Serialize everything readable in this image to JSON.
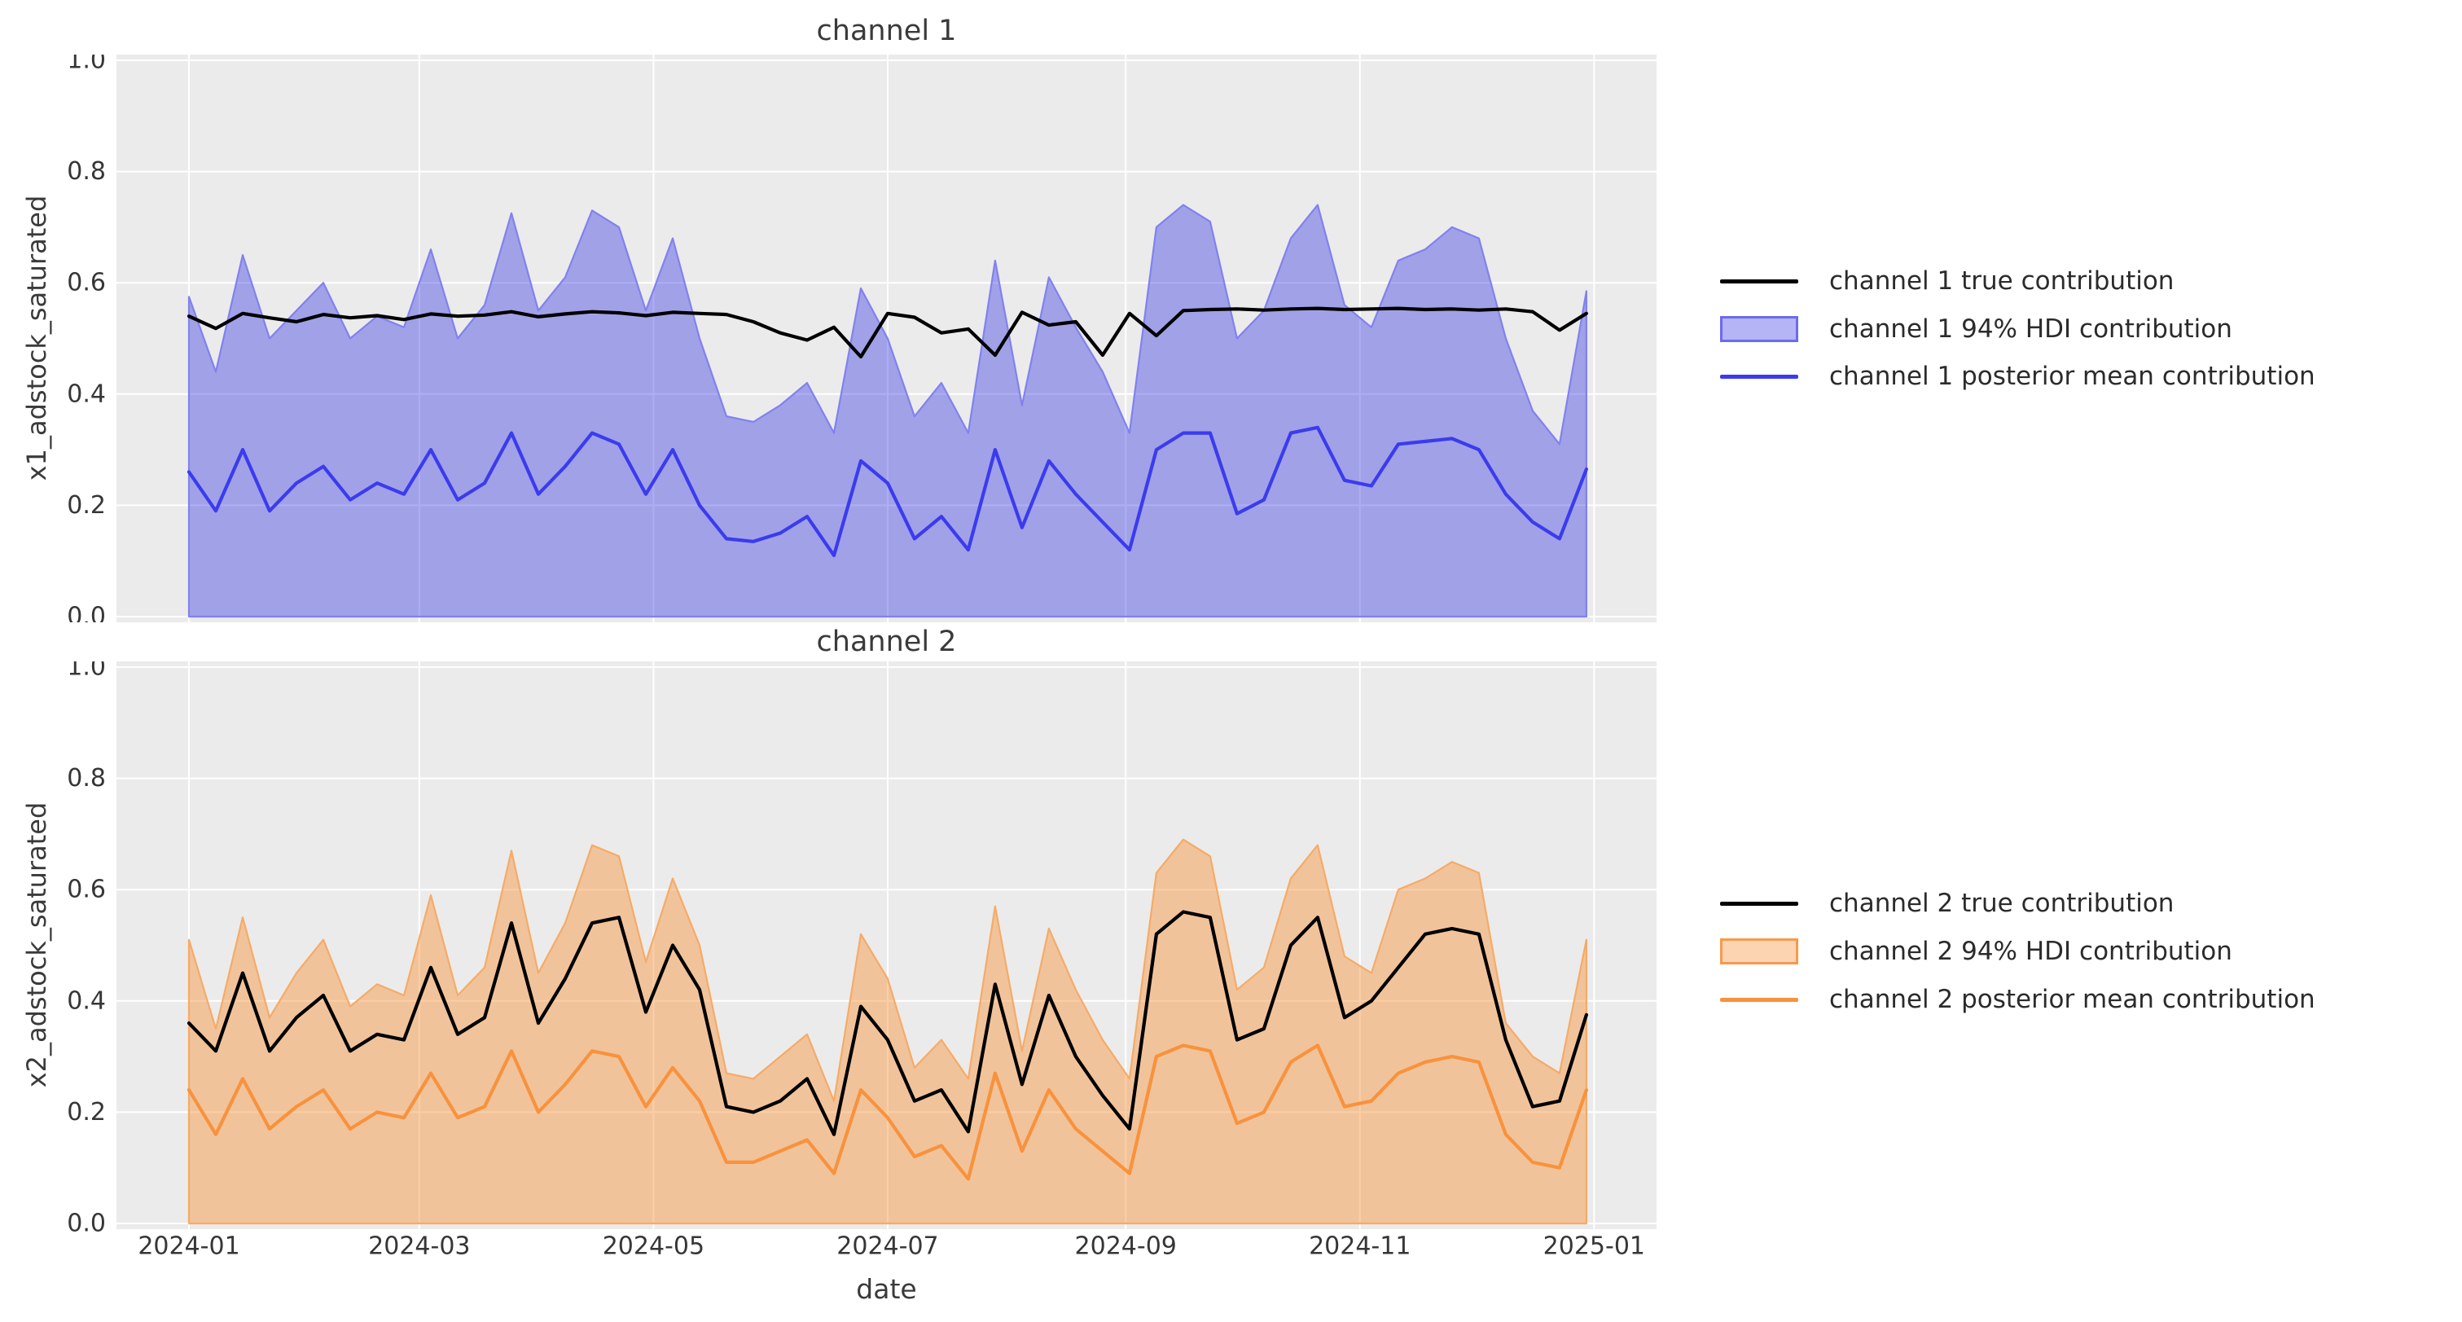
{
  "figure": {
    "background": "#ffffff",
    "axes_background": "#ebebeb",
    "grid_color": "#ffffff",
    "text_color": "#363636",
    "xlabel": "date",
    "x_tick_labels": [
      "2024-01",
      "2024-03",
      "2024-05",
      "2024-07",
      "2024-09",
      "2024-11",
      "2025-01"
    ],
    "x_tick_day_offsets": [
      0,
      60,
      121,
      182,
      244,
      305,
      366
    ],
    "y_tick_labels": [
      "0.0",
      "0.2",
      "0.4",
      "0.6",
      "0.8",
      "1.0"
    ],
    "y_tick_values": [
      0.0,
      0.2,
      0.4,
      0.6,
      0.8,
      1.0
    ]
  },
  "chart_data": [
    {
      "type": "area",
      "title": "channel 1",
      "ylabel": "x1_adstock_saturated",
      "xlabel": "date",
      "ylim": [
        0.0,
        1.0
      ],
      "grid": true,
      "legend_position": "right",
      "x_start_date": "2024-01-01",
      "x_step_days": 7,
      "n_points": 53,
      "colors": {
        "true_line": "#000000",
        "mean_line": "#3b3bee",
        "band_fill": "rgba(43,43,230,0.38)",
        "band_edge": "#8181f0",
        "legend_patch_fill": "rgba(43,43,230,0.35)",
        "legend_patch_border": "#6b6bee"
      },
      "legend": [
        {
          "label": "channel 1 true contribution",
          "type": "line",
          "color": "#000000"
        },
        {
          "label": "channel 1 94% HDI contribution",
          "type": "patch",
          "color": "rgba(43,43,230,0.35)",
          "border": "#6b6bee"
        },
        {
          "label": "channel 1 posterior mean contribution",
          "type": "line",
          "color": "#3b3bee"
        }
      ],
      "series": [
        {
          "name": "channel 1 true contribution",
          "role": "true",
          "values": [
            0.54,
            0.518,
            0.545,
            0.537,
            0.53,
            0.543,
            0.537,
            0.541,
            0.534,
            0.544,
            0.54,
            0.542,
            0.548,
            0.539,
            0.544,
            0.548,
            0.546,
            0.541,
            0.547,
            0.545,
            0.543,
            0.53,
            0.51,
            0.497,
            0.52,
            0.467,
            0.545,
            0.538,
            0.51,
            0.517,
            0.47,
            0.547,
            0.524,
            0.53,
            0.47,
            0.545,
            0.505,
            0.55,
            0.552,
            0.553,
            0.551,
            0.553,
            0.554,
            0.552,
            0.553,
            0.554,
            0.552,
            0.553,
            0.551,
            0.553,
            0.548,
            0.515,
            0.545
          ]
        },
        {
          "name": "channel 1 posterior mean contribution",
          "role": "mean",
          "values": [
            0.26,
            0.19,
            0.3,
            0.19,
            0.24,
            0.27,
            0.21,
            0.24,
            0.22,
            0.3,
            0.21,
            0.24,
            0.33,
            0.22,
            0.27,
            0.33,
            0.31,
            0.22,
            0.3,
            0.2,
            0.14,
            0.135,
            0.15,
            0.18,
            0.11,
            0.28,
            0.24,
            0.14,
            0.18,
            0.12,
            0.3,
            0.16,
            0.28,
            0.22,
            0.17,
            0.12,
            0.3,
            0.33,
            0.33,
            0.185,
            0.21,
            0.33,
            0.34,
            0.245,
            0.235,
            0.31,
            0.315,
            0.32,
            0.3,
            0.22,
            0.17,
            0.14,
            0.265
          ]
        },
        {
          "name": "channel 1 94% HDI contribution",
          "role": "band",
          "lower_constant": 0.0,
          "upper": [
            0.575,
            0.44,
            0.65,
            0.5,
            0.55,
            0.6,
            0.5,
            0.54,
            0.52,
            0.66,
            0.5,
            0.56,
            0.725,
            0.55,
            0.61,
            0.73,
            0.7,
            0.55,
            0.68,
            0.5,
            0.36,
            0.35,
            0.38,
            0.42,
            0.33,
            0.59,
            0.5,
            0.36,
            0.42,
            0.33,
            0.64,
            0.38,
            0.61,
            0.52,
            0.44,
            0.33,
            0.7,
            0.74,
            0.71,
            0.5,
            0.55,
            0.68,
            0.74,
            0.56,
            0.52,
            0.64,
            0.66,
            0.7,
            0.68,
            0.5,
            0.37,
            0.31,
            0.585
          ]
        }
      ]
    },
    {
      "type": "area",
      "title": "channel 2",
      "ylabel": "x2_adstock_saturated",
      "xlabel": "date",
      "ylim": [
        0.0,
        1.0
      ],
      "grid": true,
      "legend_position": "right",
      "x_start_date": "2024-01-01",
      "x_step_days": 7,
      "n_points": 53,
      "colors": {
        "true_line": "#000000",
        "mean_line": "#f8923c",
        "band_fill": "rgba(248,143,53,0.44)",
        "band_edge": "#f5ab67",
        "legend_patch_fill": "rgba(248,143,53,0.38)",
        "legend_patch_border": "#f79a4a"
      },
      "legend": [
        {
          "label": "channel 2 true contribution",
          "type": "line",
          "color": "#000000"
        },
        {
          "label": "channel 2 94% HDI contribution",
          "type": "patch",
          "color": "rgba(248,143,53,0.38)",
          "border": "#f79a4a"
        },
        {
          "label": "channel 2 posterior mean contribution",
          "type": "line",
          "color": "#f8923c"
        }
      ],
      "series": [
        {
          "name": "channel 2 true contribution",
          "role": "true",
          "values": [
            0.36,
            0.31,
            0.45,
            0.31,
            0.37,
            0.41,
            0.31,
            0.34,
            0.33,
            0.46,
            0.34,
            0.37,
            0.54,
            0.36,
            0.44,
            0.54,
            0.55,
            0.38,
            0.5,
            0.42,
            0.21,
            0.2,
            0.22,
            0.26,
            0.16,
            0.39,
            0.33,
            0.22,
            0.24,
            0.165,
            0.43,
            0.25,
            0.41,
            0.3,
            0.23,
            0.17,
            0.52,
            0.56,
            0.55,
            0.33,
            0.35,
            0.5,
            0.55,
            0.37,
            0.4,
            0.46,
            0.52,
            0.53,
            0.52,
            0.33,
            0.21,
            0.22,
            0.375
          ]
        },
        {
          "name": "channel 2 posterior mean contribution",
          "role": "mean",
          "values": [
            0.24,
            0.16,
            0.26,
            0.17,
            0.21,
            0.24,
            0.17,
            0.2,
            0.19,
            0.27,
            0.19,
            0.21,
            0.31,
            0.2,
            0.25,
            0.31,
            0.3,
            0.21,
            0.28,
            0.22,
            0.11,
            0.11,
            0.13,
            0.15,
            0.09,
            0.24,
            0.19,
            0.12,
            0.14,
            0.08,
            0.27,
            0.13,
            0.24,
            0.17,
            0.13,
            0.09,
            0.3,
            0.32,
            0.31,
            0.18,
            0.2,
            0.29,
            0.32,
            0.21,
            0.22,
            0.27,
            0.29,
            0.3,
            0.29,
            0.16,
            0.11,
            0.1,
            0.24
          ]
        },
        {
          "name": "channel 2 94% HDI contribution",
          "role": "band",
          "lower_constant": 0.0,
          "upper": [
            0.51,
            0.35,
            0.55,
            0.37,
            0.45,
            0.51,
            0.39,
            0.43,
            0.41,
            0.59,
            0.41,
            0.46,
            0.67,
            0.45,
            0.54,
            0.68,
            0.66,
            0.47,
            0.62,
            0.5,
            0.27,
            0.26,
            0.3,
            0.34,
            0.22,
            0.52,
            0.44,
            0.28,
            0.33,
            0.26,
            0.57,
            0.31,
            0.53,
            0.42,
            0.33,
            0.26,
            0.63,
            0.69,
            0.66,
            0.42,
            0.46,
            0.62,
            0.68,
            0.48,
            0.45,
            0.6,
            0.62,
            0.65,
            0.63,
            0.36,
            0.3,
            0.27,
            0.51
          ]
        }
      ]
    }
  ]
}
